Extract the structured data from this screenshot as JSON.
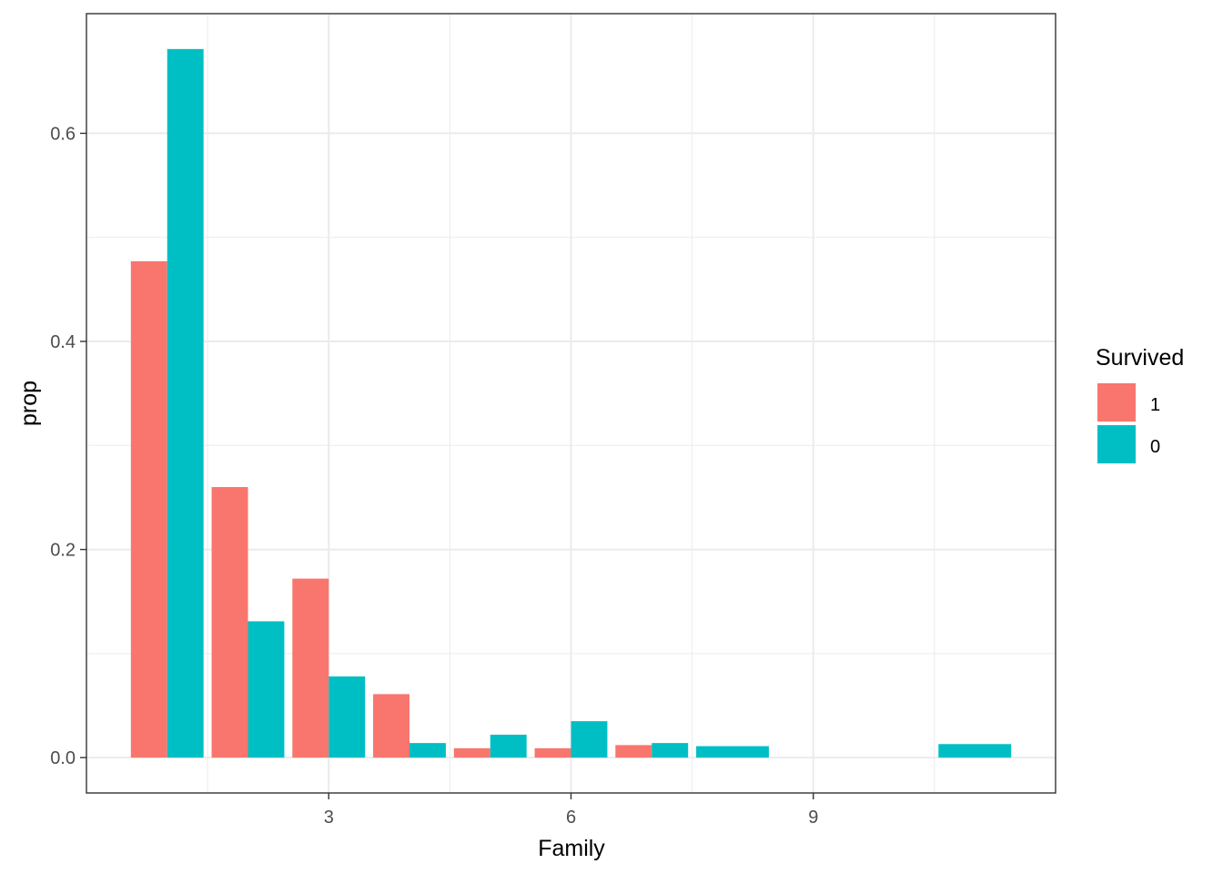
{
  "chart_data": {
    "type": "bar",
    "title": "",
    "xlabel": "Family",
    "ylabel": "prop",
    "xlim": [
      0.0,
      12.0
    ],
    "ylim": [
      -0.034,
      0.715
    ],
    "x_ticks": [
      3,
      6,
      9
    ],
    "y_ticks": [
      0.0,
      0.2,
      0.4,
      0.6
    ],
    "y_tick_labels": [
      "0.0",
      "0.2",
      "0.4",
      "0.6"
    ],
    "x_tick_labels": [
      "3",
      "6",
      "9"
    ],
    "grid": true,
    "legend": {
      "title": "Survived",
      "position": "right",
      "entries": [
        {
          "label": "1",
          "color": "#F8766D"
        },
        {
          "label": "0",
          "color": "#00BFC4"
        }
      ]
    },
    "series": [
      {
        "name": "1",
        "color": "#F8766D",
        "points": [
          {
            "x": 1,
            "y": 0.477
          },
          {
            "x": 2,
            "y": 0.26
          },
          {
            "x": 3,
            "y": 0.172
          },
          {
            "x": 4,
            "y": 0.061
          },
          {
            "x": 5,
            "y": 0.009
          },
          {
            "x": 6,
            "y": 0.009
          },
          {
            "x": 7,
            "y": 0.012
          }
        ]
      },
      {
        "name": "0",
        "color": "#00BFC4",
        "points": [
          {
            "x": 1,
            "y": 0.681
          },
          {
            "x": 2,
            "y": 0.131
          },
          {
            "x": 3,
            "y": 0.078
          },
          {
            "x": 4,
            "y": 0.014
          },
          {
            "x": 5,
            "y": 0.022
          },
          {
            "x": 6,
            "y": 0.035
          },
          {
            "x": 7,
            "y": 0.014
          },
          {
            "x": 8,
            "y": 0.011
          },
          {
            "x": 11,
            "y": 0.013
          }
        ]
      }
    ]
  }
}
